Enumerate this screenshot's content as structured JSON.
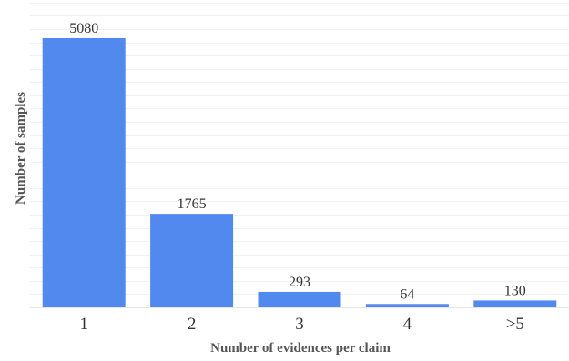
{
  "chart_data": {
    "type": "bar",
    "title": "",
    "xlabel": "Number of evidences per claim",
    "ylabel": "Number of samples",
    "categories": [
      "1",
      "2",
      "3",
      "4",
      ">5"
    ],
    "values": [
      5080,
      1765,
      293,
      64,
      130
    ],
    "data_labels": [
      "5080",
      "1765",
      "293",
      "64",
      "130"
    ],
    "ylim": [
      0,
      5800
    ],
    "grid": true,
    "legend": "none",
    "colors": {
      "bar": "#5189ee",
      "grid": "#f1f1f1",
      "text": "#333333",
      "axis_title": "#555555"
    }
  }
}
